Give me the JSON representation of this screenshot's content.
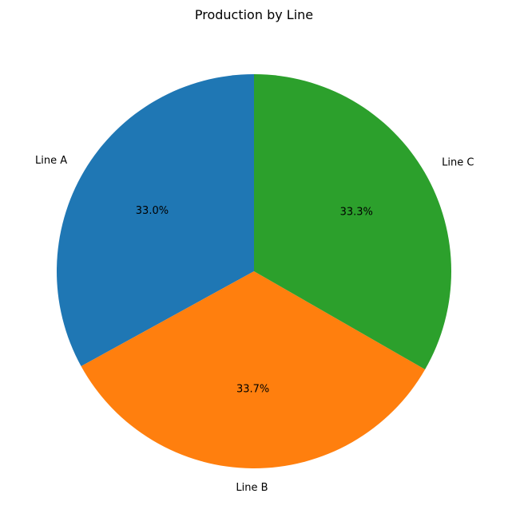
{
  "chart_data": {
    "type": "pie",
    "title": "Production by Line",
    "slices": [
      {
        "label": "Line A",
        "value": 33.0,
        "pct_text": "33.0%",
        "color": "#1f77b4"
      },
      {
        "label": "Line B",
        "value": 33.7,
        "pct_text": "33.7%",
        "color": "#ff7f0e"
      },
      {
        "label": "Line C",
        "value": 33.3,
        "pct_text": "33.3%",
        "color": "#2ca02c"
      }
    ],
    "start_angle_deg": 90,
    "direction": "counterclockwise",
    "autopct": "%1.1f%%",
    "legend": "none"
  }
}
